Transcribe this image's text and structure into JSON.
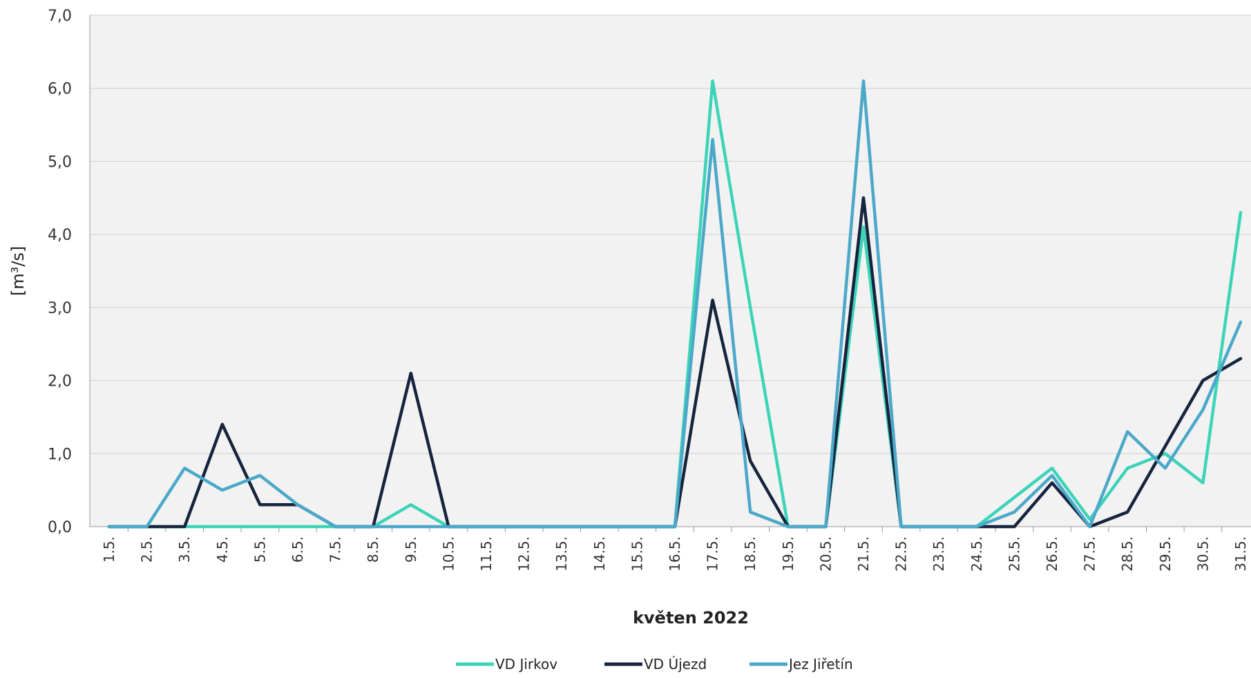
{
  "chart_data": {
    "type": "line",
    "xlabel": "květen 2022",
    "ylabel": "[m³/s]",
    "ylim": [
      0,
      7
    ],
    "yticks": [
      "0,0",
      "1,0",
      "2,0",
      "3,0",
      "4,0",
      "5,0",
      "6,0",
      "7,0"
    ],
    "grid": true,
    "legend_position": "bottom",
    "categories": [
      "1.5.",
      "2.5.",
      "3.5.",
      "4.5.",
      "5.5.",
      "6.5.",
      "7.5.",
      "8.5.",
      "9.5.",
      "10.5.",
      "11.5.",
      "12.5.",
      "13.5.",
      "14.5.",
      "15.5.",
      "16.5.",
      "17.5.",
      "18.5.",
      "19.5.",
      "20.5.",
      "21.5.",
      "22.5.",
      "23.5.",
      "24.5.",
      "25.5.",
      "26.5.",
      "27.5.",
      "28.5.",
      "29.5.",
      "30.5.",
      "31.5."
    ],
    "series": [
      {
        "name": "VD Jirkov",
        "color": "#3cd4b8",
        "values": [
          0,
          0,
          0,
          0,
          0,
          0,
          0,
          0,
          0.3,
          0,
          0,
          0,
          0,
          0,
          0,
          0,
          6.1,
          3.0,
          0,
          0,
          4.1,
          0,
          0,
          0,
          0.4,
          0.8,
          0.1,
          0.8,
          1.0,
          0.6,
          4.3
        ]
      },
      {
        "name": "VD Újezd",
        "color": "#16243e",
        "values": [
          0,
          0,
          0,
          1.4,
          0.3,
          0.3,
          0,
          0,
          2.1,
          0,
          0,
          0,
          0,
          0,
          0,
          0,
          3.1,
          0.9,
          0,
          0,
          4.5,
          0,
          0,
          0,
          0,
          0.6,
          0,
          0.2,
          1.1,
          2.0,
          2.3
        ]
      },
      {
        "name": "Jez Jiřetín",
        "color": "#4ba8c8",
        "values": [
          0,
          0,
          0.8,
          0.5,
          0.7,
          0.3,
          0,
          0,
          0,
          0,
          0,
          0,
          0,
          0,
          0,
          0,
          5.3,
          0.2,
          0,
          0,
          6.1,
          0,
          0,
          0,
          0.2,
          0.7,
          0,
          1.3,
          0.8,
          1.6,
          2.8
        ]
      }
    ]
  }
}
